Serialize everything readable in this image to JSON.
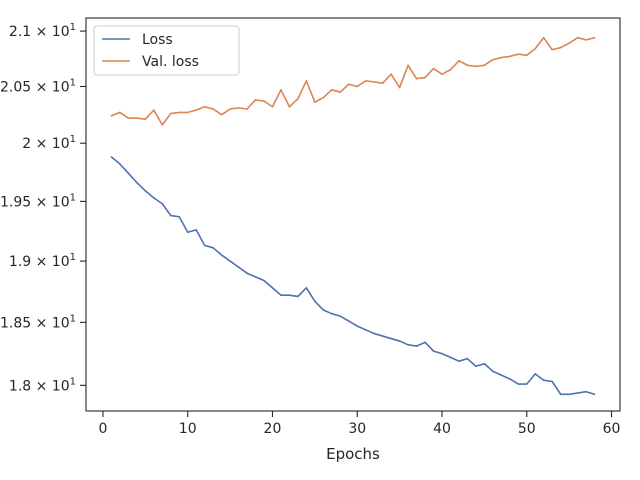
{
  "chart_data": {
    "type": "line",
    "title": "",
    "xlabel": "Epochs",
    "ylabel": "",
    "yscale": "log",
    "xlim": [
      -2,
      61
    ],
    "ylim": [
      17.8,
      21.12
    ],
    "grid": false,
    "legend_position": "top-left",
    "x_ticks": [
      0,
      10,
      20,
      30,
      40,
      50,
      60
    ],
    "x_tick_labels": [
      "0",
      "10",
      "20",
      "30",
      "40",
      "50",
      "60"
    ],
    "y_ticks": [
      {
        "value": 18.0,
        "mantissa": "1.8"
      },
      {
        "value": 18.5,
        "mantissa": "1.85"
      },
      {
        "value": 19.0,
        "mantissa": "1.9"
      },
      {
        "value": 19.5,
        "mantissa": "1.95"
      },
      {
        "value": 20.0,
        "mantissa": "2"
      },
      {
        "value": 20.5,
        "mantissa": "2.05"
      },
      {
        "value": 21.0,
        "mantissa": "2.1"
      }
    ],
    "y_tick_base": "× 10",
    "y_tick_exponent": "1",
    "x": [
      1,
      2,
      3,
      4,
      5,
      6,
      7,
      8,
      9,
      10,
      11,
      12,
      13,
      14,
      15,
      16,
      17,
      18,
      19,
      20,
      21,
      22,
      23,
      24,
      25,
      26,
      27,
      28,
      29,
      30,
      31,
      32,
      33,
      34,
      35,
      36,
      37,
      38,
      39,
      40,
      41,
      42,
      43,
      44,
      45,
      46,
      47,
      48,
      49,
      50,
      51,
      52,
      53,
      54,
      55,
      56,
      57,
      58
    ],
    "series": [
      {
        "name": "Loss",
        "color": "#4c72b0",
        "values": [
          19.88,
          19.82,
          19.74,
          19.66,
          19.59,
          19.53,
          19.48,
          19.38,
          19.37,
          19.24,
          19.26,
          19.13,
          19.11,
          19.05,
          19.0,
          18.95,
          18.9,
          18.87,
          18.84,
          18.78,
          18.72,
          18.72,
          18.71,
          18.78,
          18.67,
          18.6,
          18.57,
          18.55,
          18.51,
          18.47,
          18.44,
          18.41,
          18.39,
          18.37,
          18.35,
          18.32,
          18.31,
          18.34,
          18.27,
          18.25,
          18.22,
          18.19,
          18.21,
          18.15,
          18.17,
          18.11,
          18.08,
          18.05,
          18.01,
          18.01,
          18.09,
          18.04,
          18.03,
          17.93,
          17.93,
          17.94,
          17.95,
          17.93
        ]
      },
      {
        "name": "Val. loss",
        "color": "#dd8452",
        "values": [
          20.24,
          20.27,
          20.22,
          20.22,
          20.21,
          20.29,
          20.16,
          20.26,
          20.27,
          20.27,
          20.29,
          20.32,
          20.3,
          20.25,
          20.3,
          20.31,
          20.3,
          20.38,
          20.37,
          20.32,
          20.47,
          20.32,
          20.39,
          20.55,
          20.36,
          20.4,
          20.47,
          20.45,
          20.52,
          20.5,
          20.55,
          20.54,
          20.53,
          20.61,
          20.49,
          20.69,
          20.57,
          20.58,
          20.66,
          20.61,
          20.65,
          20.73,
          20.69,
          20.68,
          20.69,
          20.74,
          20.76,
          20.77,
          20.79,
          20.78,
          20.84,
          20.94,
          20.83,
          20.85,
          20.89,
          20.94,
          20.92,
          20.94
        ]
      }
    ]
  }
}
